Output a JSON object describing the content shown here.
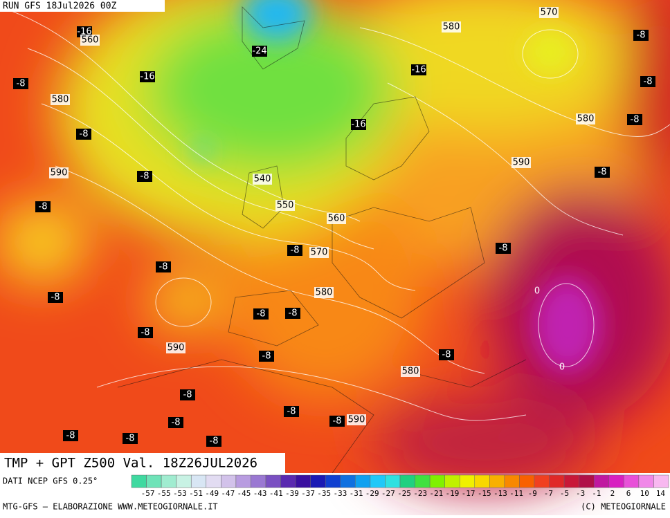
{
  "header": {
    "run": "RUN GFS 18Jul2026 00Z",
    "product": "TMP + GPT Z500 Val. 18Z26JUL2026"
  },
  "map": {
    "labels": [
      "-16",
      "560",
      "-8",
      "580",
      "-16",
      "-8",
      "590",
      "-8",
      "-8",
      "-24",
      "580",
      "570",
      "-8",
      "-16",
      "-8",
      "-16",
      "580",
      "-8",
      "590",
      "-8",
      "540",
      "550",
      "560",
      "-8",
      "570",
      "-8",
      "-8",
      "0",
      "-8",
      "580",
      "-8",
      "-8",
      "-8",
      "590",
      "-8",
      "-8",
      "0",
      "580",
      "-8",
      "-8",
      "-8",
      "590",
      "-8",
      "-8",
      "-8",
      "-8"
    ]
  },
  "colorbar": {
    "ticks": [
      -57,
      -55,
      -53,
      -51,
      -49,
      -47,
      -45,
      -43,
      -41,
      -39,
      -37,
      -35,
      -33,
      -31,
      -29,
      -27,
      -25,
      -23,
      -21,
      -19,
      -17,
      -15,
      -13,
      -11,
      -9,
      -7,
      -5,
      -3,
      -1,
      2,
      6,
      10,
      14
    ],
    "colors": [
      "#3fd9a0",
      "#6fe3b8",
      "#a0ecd0",
      "#c8f2e4",
      "#d8e6f4",
      "#e2dcf2",
      "#d2c2ea",
      "#b89ce0",
      "#9a78d2",
      "#7a50c2",
      "#5a2ab0",
      "#3a10a0",
      "#1a1ab4",
      "#1040d0",
      "#1070e0",
      "#10a0f0",
      "#20c8f8",
      "#30e0e0",
      "#20d080",
      "#40e040",
      "#80f000",
      "#c0f000",
      "#f0f000",
      "#f8d800",
      "#f8b000",
      "#f88800",
      "#f86000",
      "#f04020",
      "#e02828",
      "#c81838",
      "#b01048",
      "#c018a0",
      "#d820c0",
      "#e850d8",
      "#f088e8",
      "#f8b8f0"
    ]
  },
  "footer": {
    "source": "DATI NCEP GFS 0.25°",
    "credit": "MTG-GFS — ELABORAZIONE WWW.METEOGIORNALE.IT",
    "copyright": "(C) METEOGIORNALE"
  }
}
